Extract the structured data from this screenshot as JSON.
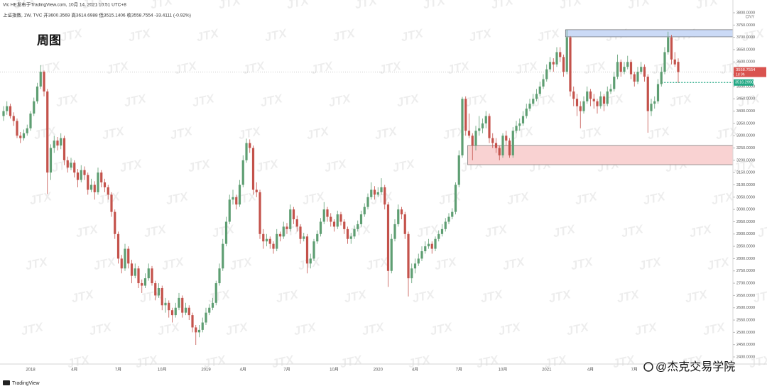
{
  "chart_data": {
    "type": "candlestick",
    "attribution": "Vic HE发布于TradingView.com, 10月 14, 2021 10:51 UTC+8",
    "header": "上证指数, 1W, TVC  开3600.3569 高3614.6988 低3515.1406 收3558.7554 -33.4111 (-0.92%)",
    "title": "周图",
    "currency": "CNY",
    "watermark": "JTX",
    "brand": "@杰克交易学院",
    "platform": "TradingView",
    "up_color": "#5e9e72",
    "down_color": "#c4524b",
    "ylim": [
      2400,
      3800
    ],
    "yticks": [
      {
        "value": 2400,
        "label": "2400.0000"
      },
      {
        "value": 2450,
        "label": "2450.0000"
      },
      {
        "value": 2500,
        "label": "2500.0000"
      },
      {
        "value": 2550,
        "label": "2550.0000"
      },
      {
        "value": 2600,
        "label": "2600.0000"
      },
      {
        "value": 2650,
        "label": "2650.0000"
      },
      {
        "value": 2700,
        "label": "2700.0000"
      },
      {
        "value": 2750,
        "label": "2750.0000"
      },
      {
        "value": 2800,
        "label": "2800.0000"
      },
      {
        "value": 2850,
        "label": "2850.0000"
      },
      {
        "value": 2900,
        "label": "2900.0000"
      },
      {
        "value": 2950,
        "label": "2950.0000"
      },
      {
        "value": 3000,
        "label": "3000.0000"
      },
      {
        "value": 3050,
        "label": "3050.0000"
      },
      {
        "value": 3100,
        "label": "3100.0000"
      },
      {
        "value": 3150,
        "label": "3150.0000"
      },
      {
        "value": 3200,
        "label": "3200.0000"
      },
      {
        "value": 3250,
        "label": "3250.0000"
      },
      {
        "value": 3300,
        "label": "3300.0000"
      },
      {
        "value": 3350,
        "label": "3350.0000"
      },
      {
        "value": 3400,
        "label": "3400.0000"
      },
      {
        "value": 3450,
        "label": "3450.0000"
      },
      {
        "value": 3500,
        "label": "3500.0000"
      },
      {
        "value": 3550,
        "label": "3550.0000"
      },
      {
        "value": 3600,
        "label": "3600.0000"
      },
      {
        "value": 3650,
        "label": "3650.0000"
      },
      {
        "value": 3700,
        "label": "3700.0000"
      },
      {
        "value": 3750,
        "label": "3750.0000"
      },
      {
        "value": 3800,
        "label": "3800.0000"
      }
    ],
    "last_price": 3558.7554,
    "countdown": "1d 9h",
    "level": {
      "value": 3516.299,
      "label": "3516.2990"
    },
    "zones": [
      {
        "low": 3702,
        "high": 3731,
        "start": 167,
        "color": "#cbdaf6"
      },
      {
        "low": 3182,
        "high": 3260,
        "start": 138,
        "color": "#f9d2d2"
      }
    ],
    "categories": [
      null,
      null,
      null,
      null,
      null,
      null,
      null,
      null,
      "2018",
      null,
      null,
      null,
      null,
      null,
      null,
      null,
      null,
      null,
      null,
      null,
      null,
      "4月",
      null,
      null,
      null,
      null,
      null,
      null,
      null,
      null,
      null,
      null,
      null,
      null,
      "7月",
      null,
      null,
      null,
      null,
      null,
      null,
      null,
      null,
      null,
      null,
      null,
      null,
      "10月",
      null,
      null,
      null,
      null,
      null,
      null,
      null,
      null,
      null,
      null,
      null,
      null,
      "2019",
      null,
      null,
      null,
      null,
      null,
      null,
      null,
      null,
      null,
      null,
      "4月",
      null,
      null,
      null,
      null,
      null,
      null,
      null,
      null,
      null,
      null,
      null,
      null,
      "7月",
      null,
      null,
      null,
      null,
      null,
      null,
      null,
      null,
      null,
      null,
      null,
      null,
      null,
      "10月",
      null,
      null,
      null,
      null,
      null,
      null,
      null,
      null,
      null,
      null,
      null,
      null,
      "2020",
      null,
      null,
      null,
      null,
      null,
      null,
      null,
      null,
      null,
      null,
      "4月",
      null,
      null,
      null,
      null,
      null,
      null,
      null,
      null,
      null,
      null,
      null,
      null,
      "7月",
      null,
      null,
      null,
      null,
      null,
      null,
      null,
      null,
      null,
      null,
      null,
      null,
      "10月",
      null,
      null,
      null,
      null,
      null,
      null,
      null,
      null,
      null,
      null,
      null,
      null,
      "2021",
      null,
      null,
      null,
      null,
      null,
      null,
      null,
      null,
      null,
      null,
      null,
      null,
      "4月",
      null,
      null,
      null,
      null,
      null,
      null,
      null,
      null,
      null,
      null,
      null,
      null,
      "7月",
      null,
      null,
      null,
      null,
      null,
      null,
      null,
      null,
      null,
      null,
      null,
      null,
      null
    ],
    "candles": [
      [
        3380,
        3420,
        3360,
        3400
      ],
      [
        3400,
        3440,
        3385,
        3420
      ],
      [
        3420,
        3430,
        3370,
        3380
      ],
      [
        3380,
        3395,
        3340,
        3360
      ],
      [
        3360,
        3370,
        3290,
        3300
      ],
      [
        3300,
        3315,
        3270,
        3290
      ],
      [
        3290,
        3325,
        3280,
        3310
      ],
      [
        3310,
        3345,
        3300,
        3330
      ],
      [
        3330,
        3400,
        3320,
        3390
      ],
      [
        3390,
        3455,
        3380,
        3440
      ],
      [
        3440,
        3515,
        3430,
        3500
      ],
      [
        3500,
        3587,
        3490,
        3560
      ],
      [
        3560,
        3565,
        3460,
        3480
      ],
      [
        3480,
        3490,
        3062,
        3150
      ],
      [
        3150,
        3265,
        3120,
        3250
      ],
      [
        3250,
        3300,
        3230,
        3280
      ],
      [
        3280,
        3295,
        3240,
        3260
      ],
      [
        3260,
        3310,
        3245,
        3290
      ],
      [
        3290,
        3300,
        3180,
        3200
      ],
      [
        3200,
        3215,
        3150,
        3170
      ],
      [
        3170,
        3210,
        3160,
        3190
      ],
      [
        3190,
        3200,
        3130,
        3150
      ],
      [
        3150,
        3165,
        3090,
        3120
      ],
      [
        3120,
        3180,
        3110,
        3160
      ],
      [
        3160,
        3175,
        3120,
        3140
      ],
      [
        3140,
        3150,
        3060,
        3080
      ],
      [
        3080,
        3125,
        3070,
        3100
      ],
      [
        3100,
        3115,
        3040,
        3070
      ],
      [
        3070,
        3170,
        3060,
        3150
      ],
      [
        3150,
        3160,
        3090,
        3110
      ],
      [
        3110,
        3125,
        3070,
        3090
      ],
      [
        3090,
        3100,
        3040,
        3060
      ],
      [
        3060,
        3070,
        2970,
        2990
      ],
      [
        2990,
        3000,
        2880,
        2900
      ],
      [
        2900,
        2910,
        2780,
        2800
      ],
      [
        2800,
        2815,
        2740,
        2760
      ],
      [
        2760,
        2860,
        2750,
        2840
      ],
      [
        2840,
        2850,
        2760,
        2780
      ],
      [
        2780,
        2795,
        2700,
        2730
      ],
      [
        2730,
        2780,
        2720,
        2760
      ],
      [
        2760,
        2770,
        2680,
        2700
      ],
      [
        2700,
        2715,
        2660,
        2690
      ],
      [
        2690,
        2740,
        2680,
        2720
      ],
      [
        2720,
        2780,
        2710,
        2760
      ],
      [
        2760,
        2770,
        2690,
        2700
      ],
      [
        2700,
        2710,
        2630,
        2650
      ],
      [
        2650,
        2700,
        2640,
        2680
      ],
      [
        2680,
        2690,
        2590,
        2610
      ],
      [
        2610,
        2640,
        2580,
        2620
      ],
      [
        2620,
        2630,
        2560,
        2590
      ],
      [
        2590,
        2600,
        2540,
        2570
      ],
      [
        2570,
        2620,
        2560,
        2600
      ],
      [
        2600,
        2660,
        2590,
        2640
      ],
      [
        2640,
        2650,
        2560,
        2580
      ],
      [
        2580,
        2620,
        2570,
        2600
      ],
      [
        2600,
        2610,
        2550,
        2570
      ],
      [
        2570,
        2580,
        2500,
        2520
      ],
      [
        2520,
        2530,
        2449,
        2500
      ],
      [
        2500,
        2530,
        2480,
        2510
      ],
      [
        2510,
        2560,
        2500,
        2540
      ],
      [
        2540,
        2600,
        2530,
        2580
      ],
      [
        2580,
        2615,
        2570,
        2600
      ],
      [
        2600,
        2640,
        2590,
        2620
      ],
      [
        2620,
        2710,
        2610,
        2700
      ],
      [
        2700,
        2780,
        2690,
        2760
      ],
      [
        2760,
        2880,
        2750,
        2860
      ],
      [
        2860,
        2970,
        2850,
        2950
      ],
      [
        2950,
        3060,
        2940,
        3040
      ],
      [
        3040,
        3080,
        3020,
        3050
      ],
      [
        3050,
        3060,
        3000,
        3020
      ],
      [
        3020,
        3120,
        3010,
        3100
      ],
      [
        3100,
        3220,
        3090,
        3200
      ],
      [
        3200,
        3288,
        3190,
        3270
      ],
      [
        3270,
        3285,
        3230,
        3250
      ],
      [
        3250,
        3260,
        3060,
        3080
      ],
      [
        3080,
        3110,
        3050,
        3070
      ],
      [
        3070,
        3080,
        2880,
        2900
      ],
      [
        2900,
        2920,
        2840,
        2870
      ],
      [
        2870,
        2900,
        2850,
        2880
      ],
      [
        2880,
        2890,
        2840,
        2860
      ],
      [
        2860,
        2870,
        2820,
        2840
      ],
      [
        2840,
        2920,
        2830,
        2900
      ],
      [
        2900,
        2910,
        2870,
        2890
      ],
      [
        2890,
        2950,
        2880,
        2930
      ],
      [
        2930,
        2945,
        2900,
        2920
      ],
      [
        2920,
        3020,
        2910,
        3000
      ],
      [
        3000,
        3010,
        2940,
        2960
      ],
      [
        2960,
        2975,
        2910,
        2930
      ],
      [
        2930,
        2940,
        2860,
        2880
      ],
      [
        2880,
        2905,
        2870,
        2890
      ],
      [
        2890,
        2900,
        2740,
        2780
      ],
      [
        2780,
        2820,
        2760,
        2800
      ],
      [
        2800,
        2880,
        2790,
        2870
      ],
      [
        2870,
        2915,
        2860,
        2900
      ],
      [
        2900,
        2965,
        2890,
        2950
      ],
      [
        2950,
        3030,
        2940,
        3000
      ],
      [
        3000,
        3010,
        2950,
        2970
      ],
      [
        2970,
        2985,
        2930,
        2950
      ],
      [
        2950,
        2960,
        2910,
        2930
      ],
      [
        2930,
        2995,
        2920,
        2980
      ],
      [
        2980,
        2990,
        2935,
        2950
      ],
      [
        2950,
        2960,
        2900,
        2920
      ],
      [
        2920,
        2930,
        2860,
        2880
      ],
      [
        2880,
        2905,
        2860,
        2890
      ],
      [
        2890,
        2935,
        2880,
        2920
      ],
      [
        2920,
        2955,
        2910,
        2940
      ],
      [
        2940,
        2995,
        2930,
        2980
      ],
      [
        2980,
        3025,
        2970,
        3010
      ],
      [
        3010,
        3065,
        3000,
        3050
      ],
      [
        3050,
        3110,
        3040,
        3080
      ],
      [
        3080,
        3095,
        3040,
        3060
      ],
      [
        3060,
        3090,
        3050,
        3070
      ],
      [
        3070,
        3127,
        3060,
        3090
      ],
      [
        3090,
        3100,
        3000,
        3020
      ],
      [
        3020,
        3030,
        2685,
        2750
      ],
      [
        2750,
        2900,
        2740,
        2880
      ],
      [
        2880,
        2960,
        2870,
        2940
      ],
      [
        2940,
        3020,
        2930,
        3000
      ],
      [
        3000,
        3010,
        2960,
        2980
      ],
      [
        2980,
        2990,
        2880,
        2900
      ],
      [
        2900,
        2910,
        2646,
        2720
      ],
      [
        2720,
        2780,
        2700,
        2760
      ],
      [
        2760,
        2800,
        2740,
        2780
      ],
      [
        2780,
        2820,
        2770,
        2800
      ],
      [
        2800,
        2850,
        2790,
        2830
      ],
      [
        2830,
        2870,
        2820,
        2850
      ],
      [
        2850,
        2880,
        2840,
        2860
      ],
      [
        2860,
        2870,
        2820,
        2840
      ],
      [
        2840,
        2890,
        2830,
        2880
      ],
      [
        2880,
        2915,
        2870,
        2900
      ],
      [
        2900,
        2940,
        2890,
        2920
      ],
      [
        2920,
        2965,
        2910,
        2950
      ],
      [
        2950,
        2985,
        2940,
        2970
      ],
      [
        2970,
        3005,
        2960,
        2990
      ],
      [
        2990,
        3110,
        2980,
        3100
      ],
      [
        3100,
        3240,
        3090,
        3220
      ],
      [
        3220,
        3458,
        3210,
        3450
      ],
      [
        3450,
        3460,
        3300,
        3320
      ],
      [
        3320,
        3390,
        3290,
        3300
      ],
      [
        3300,
        3310,
        3200,
        3260
      ],
      [
        3260,
        3340,
        3240,
        3320
      ],
      [
        3320,
        3380,
        3300,
        3330
      ],
      [
        3330,
        3370,
        3310,
        3350
      ],
      [
        3350,
        3400,
        3330,
        3380
      ],
      [
        3380,
        3390,
        3270,
        3290
      ],
      [
        3290,
        3310,
        3250,
        3270
      ],
      [
        3270,
        3290,
        3230,
        3250
      ],
      [
        3250,
        3260,
        3200,
        3220
      ],
      [
        3220,
        3310,
        3210,
        3300
      ],
      [
        3300,
        3320,
        3260,
        3280
      ],
      [
        3280,
        3290,
        3210,
        3220
      ],
      [
        3220,
        3335,
        3210,
        3320
      ],
      [
        3320,
        3360,
        3310,
        3340
      ],
      [
        3340,
        3370,
        3320,
        3350
      ],
      [
        3350,
        3400,
        3340,
        3380
      ],
      [
        3380,
        3430,
        3370,
        3410
      ],
      [
        3410,
        3450,
        3400,
        3430
      ],
      [
        3430,
        3470,
        3420,
        3450
      ],
      [
        3450,
        3490,
        3440,
        3470
      ],
      [
        3470,
        3520,
        3460,
        3500
      ],
      [
        3500,
        3550,
        3490,
        3530
      ],
      [
        3530,
        3590,
        3520,
        3570
      ],
      [
        3570,
        3620,
        3560,
        3600
      ],
      [
        3600,
        3615,
        3560,
        3590
      ],
      [
        3590,
        3660,
        3580,
        3640
      ],
      [
        3640,
        3660,
        3600,
        3620
      ],
      [
        3620,
        3630,
        3540,
        3560
      ],
      [
        3560,
        3731,
        3550,
        3700
      ],
      [
        3700,
        3705,
        3460,
        3480
      ],
      [
        3480,
        3500,
        3420,
        3450
      ],
      [
        3450,
        3470,
        3380,
        3420
      ],
      [
        3420,
        3440,
        3330,
        3400
      ],
      [
        3400,
        3460,
        3390,
        3440
      ],
      [
        3440,
        3500,
        3430,
        3480
      ],
      [
        3480,
        3490,
        3420,
        3450
      ],
      [
        3450,
        3470,
        3410,
        3440
      ],
      [
        3440,
        3450,
        3390,
        3420
      ],
      [
        3420,
        3480,
        3410,
        3460
      ],
      [
        3460,
        3470,
        3400,
        3430
      ],
      [
        3430,
        3500,
        3420,
        3480
      ],
      [
        3480,
        3510,
        3470,
        3490
      ],
      [
        3490,
        3560,
        3480,
        3540
      ],
      [
        3540,
        3630,
        3530,
        3600
      ],
      [
        3600,
        3610,
        3540,
        3560
      ],
      [
        3560,
        3600,
        3550,
        3580
      ],
      [
        3580,
        3625,
        3570,
        3600
      ],
      [
        3600,
        3610,
        3530,
        3550
      ],
      [
        3550,
        3560,
        3500,
        3520
      ],
      [
        3520,
        3580,
        3510,
        3560
      ],
      [
        3560,
        3600,
        3550,
        3580
      ],
      [
        3580,
        3590,
        3520,
        3540
      ],
      [
        3540,
        3550,
        3312,
        3400
      ],
      [
        3400,
        3450,
        3380,
        3430
      ],
      [
        3430,
        3460,
        3410,
        3440
      ],
      [
        3440,
        3530,
        3430,
        3510
      ],
      [
        3510,
        3580,
        3500,
        3560
      ],
      [
        3560,
        3660,
        3550,
        3640
      ],
      [
        3640,
        3723,
        3630,
        3700
      ],
      [
        3700,
        3710,
        3590,
        3610
      ],
      [
        3610,
        3640,
        3580,
        3590
      ],
      [
        3600.3569,
        3614.6988,
        3515.1406,
        3558.7554
      ]
    ]
  }
}
